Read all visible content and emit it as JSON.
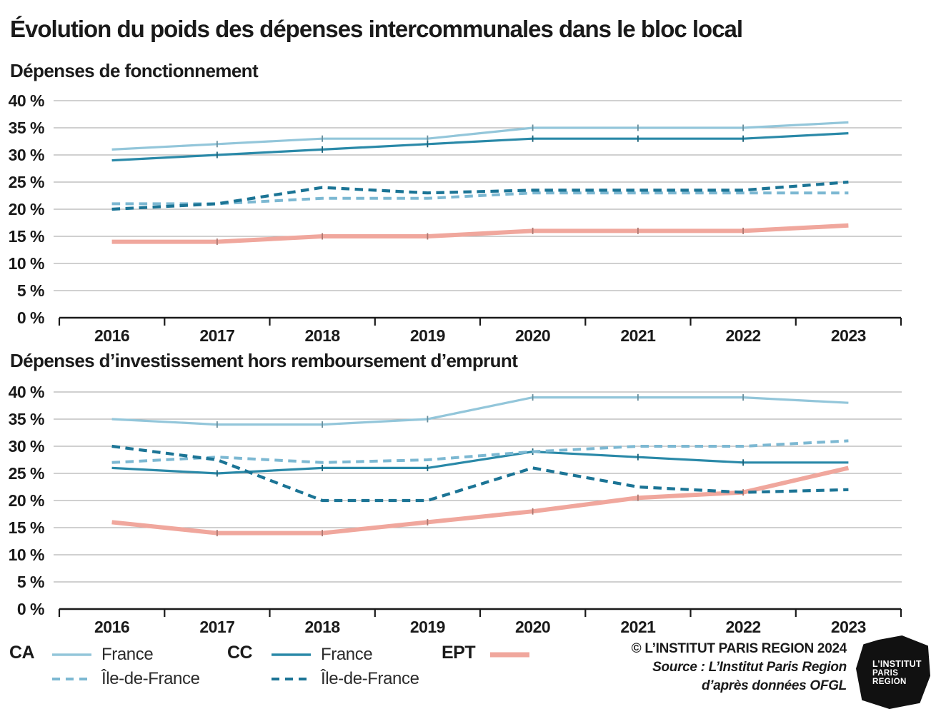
{
  "title": "Évolution du poids des dépenses intercommunales dans le bloc local",
  "colors": {
    "ca": "#93c6da",
    "ca_idf": "#7cb8d2",
    "cc": "#2a89a8",
    "cc_idf": "#1b7495",
    "ept": "#f0a79d",
    "grid": "#b3b3b3",
    "axis": "#1a1a1a",
    "text": "#1a1a1a"
  },
  "chart_data": [
    {
      "type": "line",
      "title": "Dépenses de fonctionnement",
      "x": [
        "2016",
        "2017",
        "2018",
        "2019",
        "2020",
        "2021",
        "2022",
        "2023"
      ],
      "ylim": [
        0,
        40
      ],
      "grid": true,
      "ytick_labels": [
        "40 %",
        "35 %",
        "30 %",
        "25 %",
        "20 %",
        "15 %",
        "10 %",
        "5 %",
        "0 %"
      ],
      "series": [
        {
          "name": "CA France",
          "color_key": "ca",
          "style": "solid",
          "width": 3.2,
          "values": [
            31,
            32,
            33,
            33,
            35,
            35,
            35,
            36
          ]
        },
        {
          "name": "CC France",
          "color_key": "cc",
          "style": "solid",
          "width": 3.2,
          "values": [
            29,
            30,
            31,
            32,
            33,
            33,
            33,
            34
          ]
        },
        {
          "name": "EPT",
          "color_key": "ept",
          "style": "solid",
          "width": 6,
          "values": [
            14,
            14,
            15,
            15,
            16,
            16,
            16,
            17
          ]
        },
        {
          "name": "CA Île-de-France",
          "color_key": "ca_idf",
          "style": "dashed",
          "width": 4,
          "values": [
            21,
            21,
            22,
            22,
            23,
            23,
            23,
            23
          ]
        },
        {
          "name": "CC Île-de-France",
          "color_key": "cc_idf",
          "style": "dashed",
          "width": 4.2,
          "values": [
            20,
            21,
            24,
            23,
            23.5,
            23.5,
            23.5,
            25
          ]
        }
      ]
    },
    {
      "type": "line",
      "title": "Dépenses d’investissement hors remboursement d’emprunt",
      "x": [
        "2016",
        "2017",
        "2018",
        "2019",
        "2020",
        "2021",
        "2022",
        "2023"
      ],
      "ylim": [
        0,
        40
      ],
      "grid": true,
      "ytick_labels": [
        "40 %",
        "35 %",
        "30 %",
        "25 %",
        "20 %",
        "15 %",
        "10 %",
        "5 %",
        "0 %"
      ],
      "series": [
        {
          "name": "CA France",
          "color_key": "ca",
          "style": "solid",
          "width": 3.2,
          "values": [
            35,
            34,
            34,
            35,
            39,
            39,
            39,
            38
          ]
        },
        {
          "name": "CC France",
          "color_key": "cc",
          "style": "solid",
          "width": 3.2,
          "values": [
            26,
            25,
            26,
            26,
            29,
            28,
            27,
            27
          ]
        },
        {
          "name": "EPT",
          "color_key": "ept",
          "style": "solid",
          "width": 6,
          "values": [
            16,
            14,
            14,
            16,
            18,
            20.5,
            21.5,
            26
          ]
        },
        {
          "name": "CA Île-de-France",
          "color_key": "ca_idf",
          "style": "dashed",
          "width": 4,
          "values": [
            27,
            28,
            27,
            27.5,
            29,
            30,
            30,
            31
          ]
        },
        {
          "name": "CC Île-de-France",
          "color_key": "cc_idf",
          "style": "dashed",
          "width": 4.2,
          "values": [
            30,
            27.5,
            20,
            20,
            26,
            22.5,
            21.5,
            22
          ]
        }
      ]
    }
  ],
  "legend": {
    "groups": [
      {
        "label": "CA",
        "entries": [
          {
            "label": "France"
          },
          {
            "label": "Île-de-France"
          }
        ]
      },
      {
        "label": "CC",
        "entries": [
          {
            "label": "France"
          },
          {
            "label": "Île-de-France"
          }
        ]
      },
      {
        "label": "EPT",
        "entries": []
      }
    ]
  },
  "credits": {
    "copyright": "© L’INSTITUT PARIS REGION 2024",
    "source_line1": "Source : L’Institut Paris Region",
    "source_line2": "d’après données OFGL"
  },
  "logo": {
    "line1": "L’INSTITUT",
    "line2": "PARIS",
    "line3": "REGION"
  }
}
